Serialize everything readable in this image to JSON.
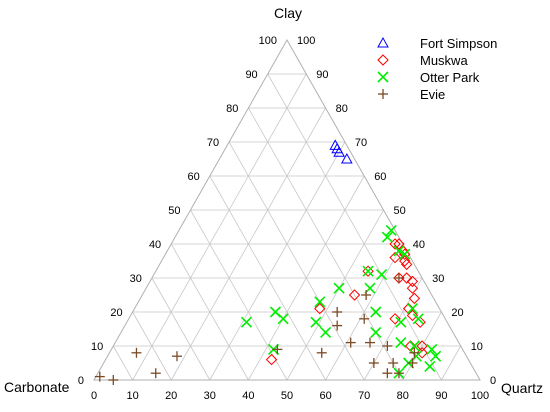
{
  "chart_data": {
    "type": "scatter",
    "subtype": "ternary",
    "title": "",
    "axes": {
      "top": {
        "label": "Clay",
        "ticks": [
          "0",
          "10",
          "20",
          "30",
          "40",
          "50",
          "60",
          "70",
          "80",
          "90",
          "100"
        ]
      },
      "right": {
        "label": "Quartz",
        "ticks": [
          "0",
          "10",
          "20",
          "30",
          "40",
          "50",
          "60",
          "70",
          "80",
          "90",
          "100"
        ]
      },
      "left": {
        "label": "Carbonate",
        "ticks": [
          "0",
          "10",
          "20",
          "30",
          "40",
          "50",
          "60",
          "70",
          "80",
          "90",
          "100"
        ]
      }
    },
    "grid": true,
    "grid_step": 10,
    "legend_position": "top-right",
    "series": [
      {
        "name": "Fort Simpson",
        "marker": "triangle-open",
        "color": "#0000ff",
        "points": [
          {
            "quartz": 28,
            "clay": 69
          },
          {
            "quartz": 29,
            "clay": 68
          },
          {
            "quartz": 30,
            "clay": 67
          },
          {
            "quartz": 33,
            "clay": 65
          }
        ]
      },
      {
        "name": "Muskwa",
        "marker": "diamond-open",
        "color": "#ff0000",
        "points": [
          {
            "quartz": 58,
            "clay": 40
          },
          {
            "quartz": 59,
            "clay": 40
          },
          {
            "quartz": 61,
            "clay": 38
          },
          {
            "quartz": 62,
            "clay": 37
          },
          {
            "quartz": 60,
            "clay": 36
          },
          {
            "quartz": 63,
            "clay": 35
          },
          {
            "quartz": 64,
            "clay": 34
          },
          {
            "quartz": 64,
            "clay": 30
          },
          {
            "quartz": 66,
            "clay": 30
          },
          {
            "quartz": 68,
            "clay": 29
          },
          {
            "quartz": 69,
            "clay": 27
          },
          {
            "quartz": 71,
            "clay": 24
          },
          {
            "quartz": 71,
            "clay": 21
          },
          {
            "quartz": 69,
            "clay": 18
          },
          {
            "quartz": 73,
            "clay": 19
          },
          {
            "quartz": 76,
            "clay": 17
          },
          {
            "quartz": 77,
            "clay": 10
          },
          {
            "quartz": 80,
            "clay": 10
          },
          {
            "quartz": 81,
            "clay": 8
          },
          {
            "quartz": 55,
            "clay": 32
          },
          {
            "quartz": 48,
            "clay": 21
          },
          {
            "quartz": 55,
            "clay": 25
          },
          {
            "quartz": 43,
            "clay": 6
          }
        ]
      },
      {
        "name": "Otter Park",
        "marker": "x",
        "color": "#00ee00",
        "points": [
          {
            "quartz": 55,
            "clay": 44
          },
          {
            "quartz": 55,
            "clay": 42
          },
          {
            "quartz": 60,
            "clay": 38
          },
          {
            "quartz": 62,
            "clay": 37
          },
          {
            "quartz": 55,
            "clay": 32
          },
          {
            "quartz": 59,
            "clay": 31
          },
          {
            "quartz": 58,
            "clay": 27
          },
          {
            "quartz": 50,
            "clay": 27
          },
          {
            "quartz": 47,
            "clay": 23
          },
          {
            "quartz": 72,
            "clay": 21
          },
          {
            "quartz": 63,
            "clay": 20
          },
          {
            "quartz": 71,
            "clay": 17
          },
          {
            "quartz": 75,
            "clay": 18
          },
          {
            "quartz": 66,
            "clay": 14
          },
          {
            "quartz": 53,
            "clay": 14
          },
          {
            "quartz": 49,
            "clay": 17
          },
          {
            "quartz": 37,
            "clay": 20
          },
          {
            "quartz": 40,
            "clay": 18
          },
          {
            "quartz": 31,
            "clay": 17
          },
          {
            "quartz": 42,
            "clay": 9
          },
          {
            "quartz": 78,
            "clay": 10
          },
          {
            "quartz": 80,
            "clay": 7
          },
          {
            "quartz": 83,
            "clay": 9
          },
          {
            "quartz": 85,
            "clay": 7
          },
          {
            "quartz": 85,
            "clay": 4
          },
          {
            "quartz": 79,
            "clay": 5
          },
          {
            "quartz": 74,
            "clay": 11
          },
          {
            "quartz": 78,
            "clay": 2
          }
        ]
      },
      {
        "name": "Evie",
        "marker": "plus",
        "color": "#7b4a24",
        "points": [
          {
            "quartz": 64,
            "clay": 30
          },
          {
            "quartz": 53,
            "clay": 20
          },
          {
            "quartz": 58,
            "clay": 25
          },
          {
            "quartz": 61,
            "clay": 18
          },
          {
            "quartz": 55,
            "clay": 16
          },
          {
            "quartz": 61,
            "clay": 11
          },
          {
            "quartz": 66,
            "clay": 11
          },
          {
            "quartz": 71,
            "clay": 10
          },
          {
            "quartz": 79,
            "clay": 8
          },
          {
            "quartz": 55,
            "clay": 8
          },
          {
            "quartz": 43,
            "clay": 9
          },
          {
            "quartz": 70,
            "clay": 5
          },
          {
            "quartz": 75,
            "clay": 5
          },
          {
            "quartz": 80,
            "clay": 5
          },
          {
            "quartz": 75,
            "clay": 2
          },
          {
            "quartz": 78,
            "clay": 2
          },
          {
            "quartz": 7,
            "clay": 8
          },
          {
            "quartz": 18,
            "clay": 7
          },
          {
            "quartz": 15,
            "clay": 2
          },
          {
            "quartz": 1,
            "clay": 1
          },
          {
            "quartz": 5,
            "clay": 0
          }
        ]
      }
    ]
  }
}
